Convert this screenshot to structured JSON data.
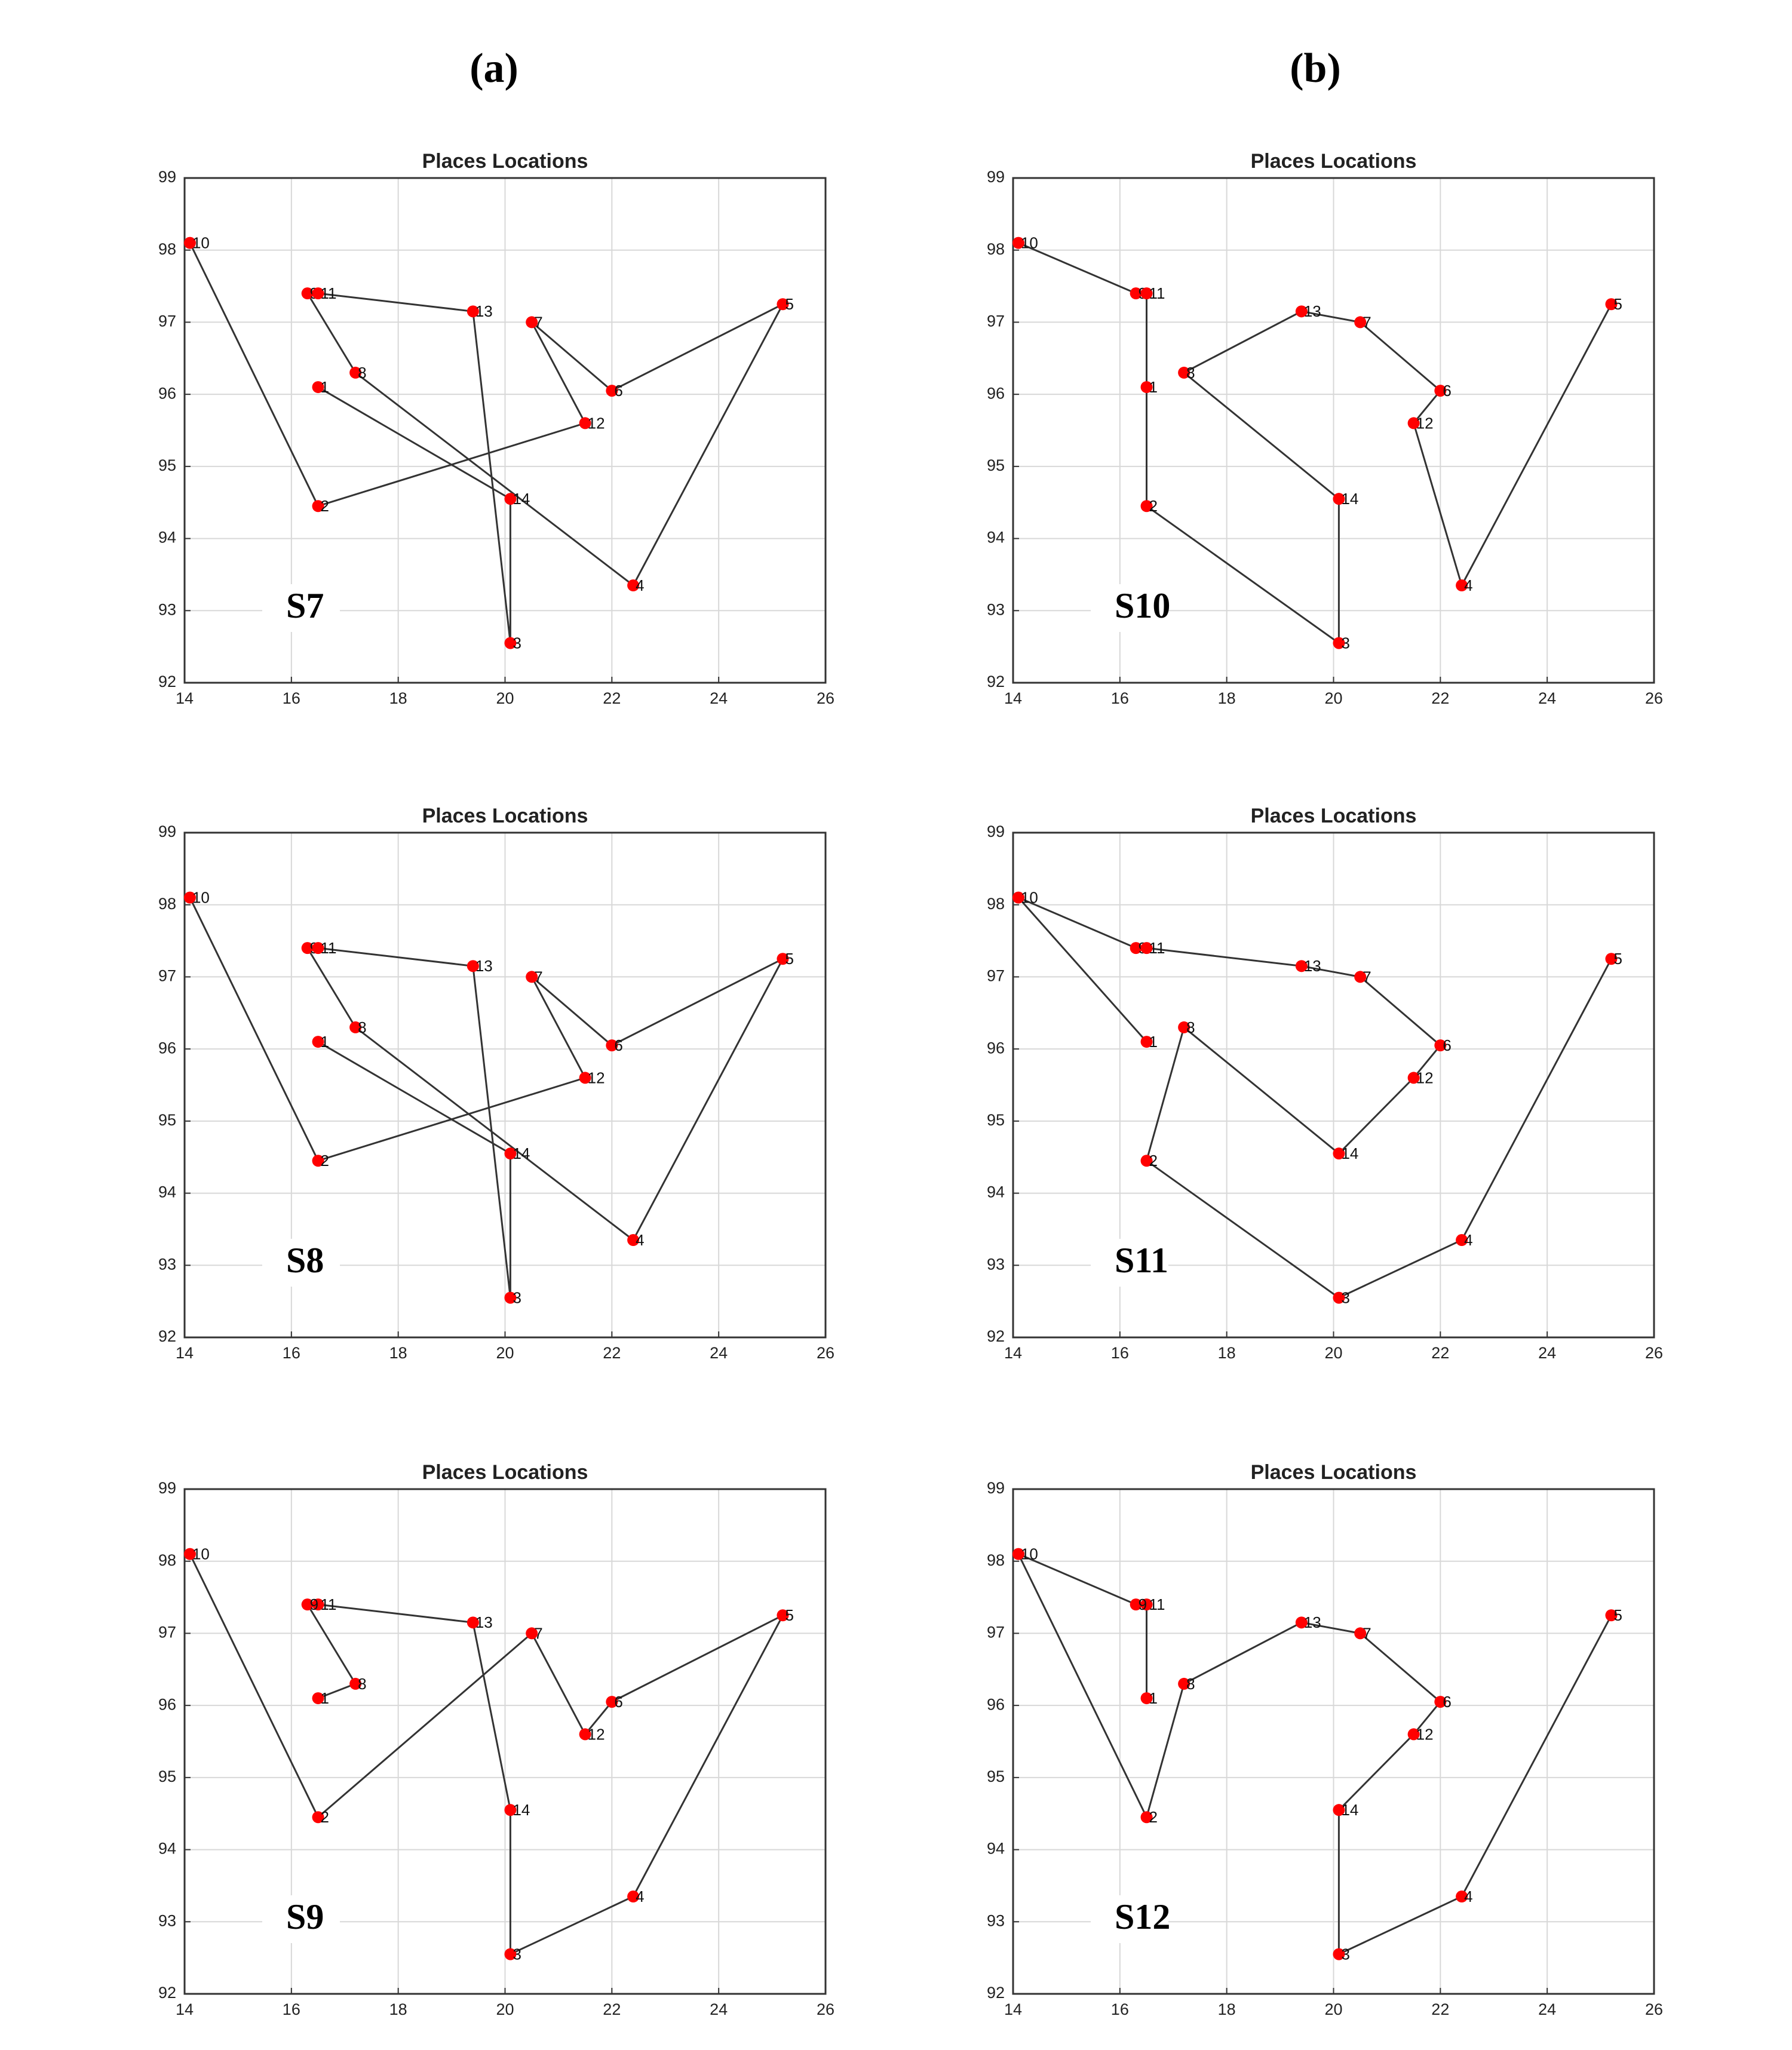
{
  "column_headers": [
    "(a)",
    "(b)"
  ],
  "chart_data": [
    {
      "type": "line",
      "title": "Places Locations",
      "panel": "S7",
      "x": [
        14.1,
        16.5,
        21.5,
        20.5,
        22.0,
        25.2,
        22.4,
        17.2,
        16.3,
        16.5,
        19.4,
        20.1,
        20.1,
        16.5
      ],
      "y": [
        98.1,
        94.45,
        95.6,
        97.0,
        96.05,
        97.25,
        93.35,
        96.3,
        97.4,
        97.4,
        97.15,
        92.55,
        94.55,
        96.1
      ],
      "point_labels": [
        "10",
        "2",
        "12",
        "7",
        "6",
        "5",
        "4",
        "8",
        "9",
        "11",
        "13",
        "3",
        "14",
        "1"
      ],
      "line_color": "#333333",
      "marker_color": "#ff0000",
      "xlim": [
        14,
        26
      ],
      "xticks": [
        14,
        16,
        18,
        20,
        22,
        24,
        26
      ],
      "ylim": [
        92,
        99
      ],
      "yticks": [
        92,
        93,
        94,
        95,
        96,
        97,
        98,
        99
      ],
      "grid": true
    },
    {
      "type": "line",
      "title": "Places Locations",
      "panel": "S10",
      "x": [
        14.1,
        16.3,
        16.5,
        16.5,
        16.5,
        20.1,
        20.1,
        17.2,
        19.4,
        20.5,
        22.0,
        21.5,
        22.4,
        25.2
      ],
      "y": [
        98.1,
        97.4,
        97.4,
        96.1,
        94.45,
        92.55,
        94.55,
        96.3,
        97.15,
        97.0,
        96.05,
        95.6,
        93.35,
        97.25
      ],
      "point_labels": [
        "10",
        "9",
        "11",
        "1",
        "2",
        "3",
        "14",
        "8",
        "13",
        "7",
        "6",
        "12",
        "4",
        "5"
      ],
      "line_color": "#333333",
      "marker_color": "#ff0000",
      "xlim": [
        14,
        26
      ],
      "xticks": [
        14,
        16,
        18,
        20,
        22,
        24,
        26
      ],
      "ylim": [
        92,
        99
      ],
      "yticks": [
        92,
        93,
        94,
        95,
        96,
        97,
        98,
        99
      ],
      "grid": true
    },
    {
      "type": "line",
      "title": "Places Locations",
      "panel": "S8",
      "x": [
        14.1,
        16.5,
        21.5,
        20.5,
        22.0,
        25.2,
        22.4,
        17.2,
        16.3,
        16.5,
        19.4,
        20.1,
        20.1,
        16.5
      ],
      "y": [
        98.1,
        94.45,
        95.6,
        97.0,
        96.05,
        97.25,
        93.35,
        96.3,
        97.4,
        97.4,
        97.15,
        92.55,
        94.55,
        96.1
      ],
      "point_labels": [
        "10",
        "2",
        "12",
        "7",
        "6",
        "5",
        "4",
        "8",
        "9",
        "11",
        "13",
        "3",
        "14",
        "1"
      ],
      "line_color": "#333333",
      "marker_color": "#ff0000",
      "xlim": [
        14,
        26
      ],
      "xticks": [
        14,
        16,
        18,
        20,
        22,
        24,
        26
      ],
      "ylim": [
        92,
        99
      ],
      "yticks": [
        92,
        93,
        94,
        95,
        96,
        97,
        98,
        99
      ],
      "grid": true
    },
    {
      "type": "line",
      "title": "Places Locations",
      "panel": "S11",
      "x": [
        16.5,
        14.1,
        16.3,
        16.5,
        19.4,
        20.5,
        22.0,
        21.5,
        20.1,
        17.2,
        16.5,
        20.1,
        22.4,
        25.2
      ],
      "y": [
        96.1,
        98.1,
        97.4,
        97.4,
        97.15,
        97.0,
        96.05,
        95.6,
        94.55,
        96.3,
        94.45,
        92.55,
        93.35,
        97.25
      ],
      "point_labels": [
        "1",
        "10",
        "9",
        "11",
        "13",
        "7",
        "6",
        "12",
        "14",
        "8",
        "2",
        "3",
        "4",
        "5"
      ],
      "line_color": "#333333",
      "marker_color": "#ff0000",
      "xlim": [
        14,
        26
      ],
      "xticks": [
        14,
        16,
        18,
        20,
        22,
        24,
        26
      ],
      "ylim": [
        92,
        99
      ],
      "yticks": [
        92,
        93,
        94,
        95,
        96,
        97,
        98,
        99
      ],
      "grid": true
    },
    {
      "type": "line",
      "title": "Places Locations",
      "panel": "S9",
      "x": [
        14.1,
        16.5,
        20.5,
        21.5,
        22.0,
        25.2,
        22.4,
        20.1,
        20.1,
        19.4,
        16.5,
        16.3,
        17.2,
        16.5
      ],
      "y": [
        98.1,
        94.45,
        97.0,
        95.6,
        96.05,
        97.25,
        93.35,
        92.55,
        94.55,
        97.15,
        97.4,
        97.4,
        96.3,
        96.1
      ],
      "point_labels": [
        "10",
        "2",
        "7",
        "12",
        "6",
        "5",
        "4",
        "3",
        "14",
        "13",
        "11",
        "9",
        "8",
        "1"
      ],
      "line_color": "#333333",
      "marker_color": "#ff0000",
      "xlim": [
        14,
        26
      ],
      "xticks": [
        14,
        16,
        18,
        20,
        22,
        24,
        26
      ],
      "ylim": [
        92,
        99
      ],
      "yticks": [
        92,
        93,
        94,
        95,
        96,
        97,
        98,
        99
      ],
      "grid": true
    },
    {
      "type": "line",
      "title": "Places Locations",
      "panel": "S12",
      "x": [
        16.5,
        16.5,
        16.3,
        14.1,
        16.5,
        17.2,
        19.4,
        20.5,
        22.0,
        21.5,
        20.1,
        20.1,
        22.4,
        25.2
      ],
      "y": [
        96.1,
        97.4,
        97.4,
        98.1,
        94.45,
        96.3,
        97.15,
        97.0,
        96.05,
        95.6,
        94.55,
        92.55,
        93.35,
        97.25
      ],
      "point_labels": [
        "1",
        "11",
        "9",
        "10",
        "2",
        "8",
        "13",
        "7",
        "6",
        "12",
        "14",
        "3",
        "4",
        "5"
      ],
      "line_color": "#333333",
      "marker_color": "#ff0000",
      "xlim": [
        14,
        26
      ],
      "xticks": [
        14,
        16,
        18,
        20,
        22,
        24,
        26
      ],
      "ylim": [
        92,
        99
      ],
      "yticks": [
        92,
        93,
        94,
        95,
        96,
        97,
        98,
        99
      ],
      "grid": true
    }
  ]
}
